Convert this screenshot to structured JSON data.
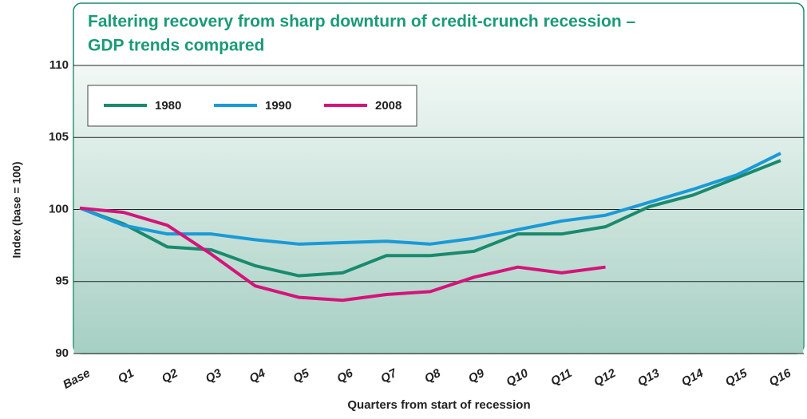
{
  "chart_data": {
    "type": "line",
    "title": "Faltering recovery from sharp downturn of credit-crunch recession –",
    "subtitle": "GDP trends compared",
    "y_label": "Index (base = 100)",
    "x_label": "Quarters from start of recession",
    "categories": [
      "Base",
      "Q1",
      "Q2",
      "Q3",
      "Q4",
      "Q5",
      "Q6",
      "Q7",
      "Q8",
      "Q9",
      "Q10",
      "Q11",
      "Q12",
      "Q13",
      "Q14",
      "Q15",
      "Q16"
    ],
    "series": [
      {
        "name": "1980",
        "color": "#1a8a6e",
        "values": [
          100.1,
          99.0,
          97.4,
          97.2,
          96.1,
          95.4,
          95.6,
          96.8,
          96.8,
          97.1,
          98.3,
          98.3,
          98.8,
          100.2,
          101.0,
          102.2,
          103.4
        ]
      },
      {
        "name": "1990",
        "color": "#1a9ad6",
        "values": [
          100.1,
          98.9,
          98.3,
          98.3,
          97.9,
          97.6,
          97.7,
          97.8,
          97.6,
          98.0,
          98.6,
          99.2,
          99.6,
          100.5,
          101.4,
          102.4,
          103.9
        ]
      },
      {
        "name": "2008",
        "color": "#d4147a",
        "values": [
          100.1,
          99.8,
          98.9,
          96.9,
          94.7,
          93.9,
          93.7,
          94.1,
          94.3,
          95.3,
          96.0,
          95.6,
          96.0,
          null,
          null,
          null,
          null
        ]
      }
    ],
    "ylim": [
      90,
      110
    ],
    "yticks": [
      90,
      95,
      100,
      105,
      110
    ],
    "grid": true,
    "legend": "top-left"
  }
}
